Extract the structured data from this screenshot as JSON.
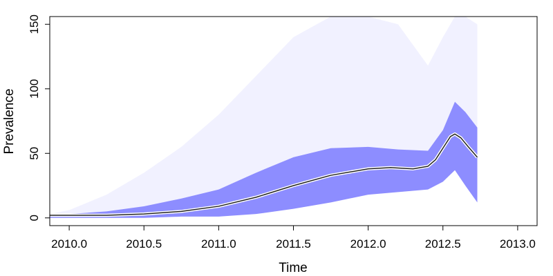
{
  "chart_data": {
    "type": "line",
    "title": "",
    "xlabel": "Time",
    "ylabel": "Prevalence",
    "xlim": [
      2009.87,
      2013.13
    ],
    "ylim": [
      -6,
      156
    ],
    "x_ticks": [
      2010.0,
      2010.5,
      2011.0,
      2011.5,
      2012.0,
      2012.5,
      2013.0
    ],
    "x_tick_labels": [
      "2010.0",
      "2010.5",
      "2011.0",
      "2011.5",
      "2012.0",
      "2012.5",
      "2013.0"
    ],
    "y_ticks": [
      0,
      50,
      100,
      150
    ],
    "y_tick_labels": [
      "0",
      "50",
      "100",
      "150"
    ],
    "grid": false,
    "legend": "none",
    "colors": {
      "trajectories": "#3b3bff",
      "median_line": "#222222",
      "median_halo": "#ffffff"
    },
    "series": [
      {
        "role": "median",
        "x": [
          2009.87,
          2010.0,
          2010.25,
          2010.5,
          2010.75,
          2011.0,
          2011.25,
          2011.5,
          2011.75,
          2012.0,
          2012.15,
          2012.3,
          2012.4,
          2012.45,
          2012.5,
          2012.55,
          2012.58,
          2012.62,
          2012.67,
          2012.73
        ],
        "values": [
          2,
          2,
          2,
          3,
          5,
          9,
          16,
          25,
          33,
          38,
          39,
          38,
          40,
          45,
          54,
          63,
          65,
          62,
          55,
          47
        ]
      },
      {
        "role": "dense-band-lower",
        "x": [
          2009.87,
          2010.0,
          2010.25,
          2010.5,
          2010.75,
          2011.0,
          2011.25,
          2011.5,
          2011.75,
          2012.0,
          2012.2,
          2012.4,
          2012.5,
          2012.58,
          2012.65,
          2012.73
        ],
        "values": [
          0,
          0,
          0,
          0,
          1,
          1,
          3,
          7,
          12,
          18,
          20,
          22,
          28,
          37,
          25,
          12
        ]
      },
      {
        "role": "dense-band-upper",
        "x": [
          2009.87,
          2010.0,
          2010.25,
          2010.5,
          2010.75,
          2011.0,
          2011.25,
          2011.5,
          2011.75,
          2012.0,
          2012.2,
          2012.4,
          2012.5,
          2012.58,
          2012.65,
          2012.73
        ],
        "values": [
          2,
          3,
          5,
          9,
          15,
          22,
          35,
          47,
          54,
          55,
          53,
          52,
          68,
          90,
          82,
          70
        ]
      },
      {
        "role": "sparse-band-upper",
        "x": [
          2009.87,
          2010.0,
          2010.25,
          2010.5,
          2010.75,
          2011.0,
          2011.25,
          2011.5,
          2011.75,
          2012.0,
          2012.2,
          2012.4,
          2012.5,
          2012.58,
          2012.65,
          2012.73
        ],
        "values": [
          3,
          6,
          18,
          35,
          55,
          80,
          110,
          140,
          156,
          156,
          150,
          118,
          140,
          156,
          156,
          150
        ]
      }
    ]
  }
}
